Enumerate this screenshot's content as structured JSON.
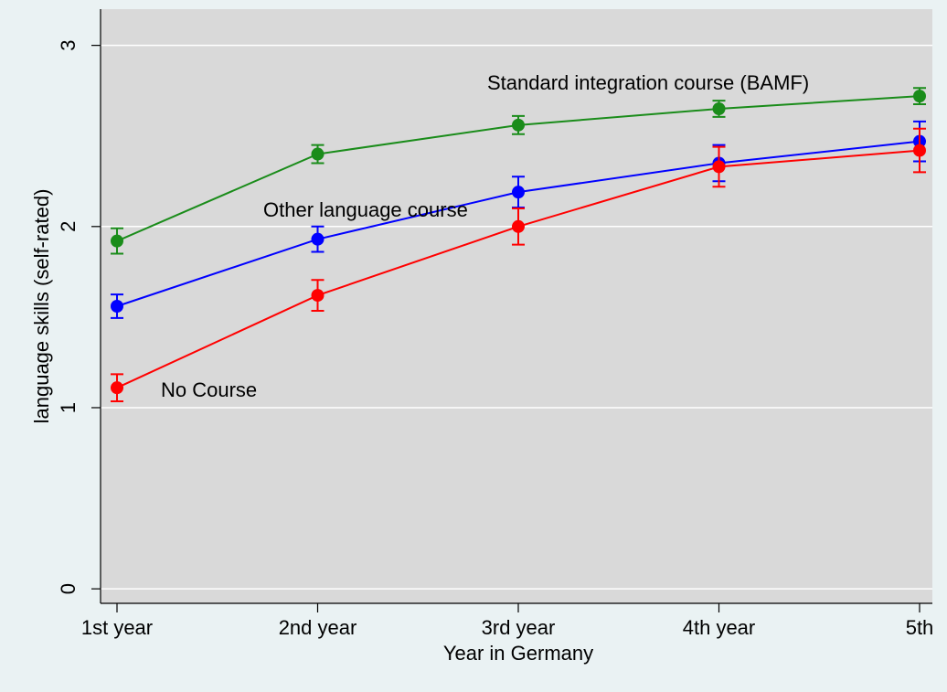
{
  "chart_data": {
    "type": "line",
    "xlabel": "Year in Germany",
    "ylabel": "language skills (self-rated)",
    "categories": [
      "1st year",
      "2nd year",
      "3rd year",
      "4th year",
      "5th"
    ],
    "series": [
      {
        "name": "Standard integration course (BAMF)",
        "color": "#1a8c1a",
        "values": [
          1.92,
          2.4,
          2.56,
          2.65,
          2.72
        ],
        "errors": [
          0.07,
          0.05,
          0.05,
          0.045,
          0.045
        ]
      },
      {
        "name": "Other language course",
        "color": "#0000ff",
        "values": [
          1.56,
          1.93,
          2.19,
          2.35,
          2.47
        ],
        "errors": [
          0.065,
          0.07,
          0.085,
          0.1,
          0.11
        ]
      },
      {
        "name": "No Course",
        "color": "#ff0000",
        "values": [
          1.11,
          1.62,
          2.0,
          2.33,
          2.42
        ],
        "errors": [
          0.075,
          0.085,
          0.1,
          0.11,
          0.12
        ]
      }
    ],
    "ylim": [
      -0.08,
      3.2
    ],
    "yticks": [
      0,
      1,
      2,
      3
    ],
    "grid": true
  }
}
